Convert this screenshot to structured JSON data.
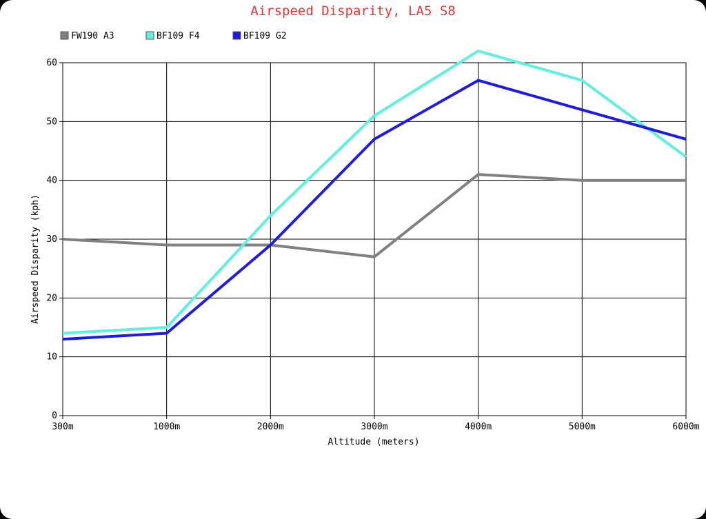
{
  "chart_data": {
    "type": "line",
    "title": "Airspeed Disparity, LA5 S8",
    "xlabel": "Altitude (meters)",
    "ylabel": "Airspeed Disparity (kph)",
    "categories": [
      "300m",
      "1000m",
      "2000m",
      "3000m",
      "4000m",
      "5000m",
      "6000m"
    ],
    "ylim": [
      0,
      60
    ],
    "yticks": [
      "0",
      "10",
      "20",
      "30",
      "40",
      "50",
      "60"
    ],
    "grid": true,
    "legend_position": "top-left",
    "title_color": "#ee3333",
    "series": [
      {
        "name": "FW190 A3",
        "color": "#808080",
        "values": [
          30,
          29,
          29,
          27,
          41,
          40,
          40
        ]
      },
      {
        "name": "BF109 F4",
        "color": "#5ff0e0",
        "values": [
          14,
          15,
          34,
          51,
          62,
          57,
          44
        ]
      },
      {
        "name": "BF109 G2",
        "color": "#1c1ce6",
        "values": [
          13,
          14,
          29,
          47,
          57,
          52,
          47
        ]
      }
    ]
  }
}
